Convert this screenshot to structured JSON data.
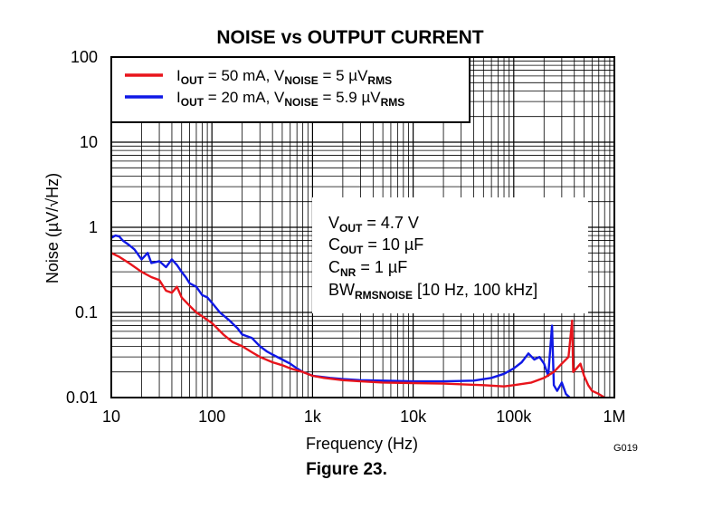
{
  "chart_data": {
    "type": "line",
    "title": "NOISE vs OUTPUT CURRENT",
    "xlabel": "Frequency (Hz)",
    "ylabel": "Noise (µV/√Hz)",
    "x_scale": "log",
    "y_scale": "log",
    "xlim": [
      10,
      1000000
    ],
    "ylim": [
      0.01,
      100
    ],
    "x_ticks": [
      {
        "value": 10,
        "label": "10"
      },
      {
        "value": 100,
        "label": "100"
      },
      {
        "value": 1000,
        "label": "1k"
      },
      {
        "value": 10000,
        "label": "10k"
      },
      {
        "value": 100000,
        "label": "100k"
      },
      {
        "value": 1000000,
        "label": "1M"
      }
    ],
    "y_ticks": [
      {
        "value": 0.01,
        "label": "0.01"
      },
      {
        "value": 0.1,
        "label": "0.1"
      },
      {
        "value": 1,
        "label": "1"
      },
      {
        "value": 10,
        "label": "10"
      },
      {
        "value": 100,
        "label": "100"
      }
    ],
    "grid": true,
    "legend_position": "top-left",
    "series": [
      {
        "name": "IOUT = 50 mA, VNOISE = 5 µVRMS",
        "legend_html": "I<tspan font-size='12' font-weight='bold' dy='4'>OUT</tspan><tspan dy='-4'> = 50 mA, V</tspan><tspan font-size='12' font-weight='bold' dy='4'>NOISE</tspan><tspan dy='-4'> = 5 µV</tspan><tspan font-size='12' font-weight='bold' dy='4'>RMS</tspan>",
        "color": "#e8141b",
        "points": [
          [
            10,
            0.5
          ],
          [
            12,
            0.45
          ],
          [
            15,
            0.38
          ],
          [
            20,
            0.3
          ],
          [
            25,
            0.26
          ],
          [
            30,
            0.24
          ],
          [
            35,
            0.18
          ],
          [
            40,
            0.17
          ],
          [
            45,
            0.2
          ],
          [
            50,
            0.15
          ],
          [
            60,
            0.12
          ],
          [
            70,
            0.1
          ],
          [
            80,
            0.09
          ],
          [
            100,
            0.075
          ],
          [
            130,
            0.055
          ],
          [
            160,
            0.045
          ],
          [
            200,
            0.04
          ],
          [
            250,
            0.034
          ],
          [
            300,
            0.03
          ],
          [
            400,
            0.026
          ],
          [
            500,
            0.024
          ],
          [
            600,
            0.022
          ],
          [
            800,
            0.02
          ],
          [
            1000,
            0.018
          ],
          [
            1300,
            0.017
          ],
          [
            2000,
            0.016
          ],
          [
            3000,
            0.0155
          ],
          [
            5000,
            0.015
          ],
          [
            10000,
            0.0148
          ],
          [
            20000,
            0.0146
          ],
          [
            50000,
            0.014
          ],
          [
            80000,
            0.0135
          ],
          [
            100000,
            0.014
          ],
          [
            150000,
            0.015
          ],
          [
            200000,
            0.017
          ],
          [
            250000,
            0.02
          ],
          [
            300000,
            0.025
          ],
          [
            350000,
            0.03
          ],
          [
            380000,
            0.08
          ],
          [
            390000,
            0.02
          ],
          [
            420000,
            0.022
          ],
          [
            460000,
            0.025
          ],
          [
            500000,
            0.018
          ],
          [
            550000,
            0.014
          ],
          [
            600000,
            0.012
          ],
          [
            700000,
            0.011
          ],
          [
            800000,
            0.01
          ]
        ]
      },
      {
        "name": "IOUT = 20 mA, VNOISE = 5.9 µVRMS",
        "legend_html": "I<tspan font-size='12' font-weight='bold' dy='4'>OUT</tspan><tspan dy='-4'> = 20 mA, V</tspan><tspan font-size='12' font-weight='bold' dy='4'>NOISE</tspan><tspan dy='-4'> = 5.9 µV</tspan><tspan font-size='12' font-weight='bold' dy='4'>RMS</tspan>",
        "color": "#0f18e6",
        "points": [
          [
            10,
            0.75
          ],
          [
            11,
            0.8
          ],
          [
            12,
            0.78
          ],
          [
            13,
            0.7
          ],
          [
            15,
            0.62
          ],
          [
            17,
            0.55
          ],
          [
            20,
            0.42
          ],
          [
            23,
            0.5
          ],
          [
            25,
            0.38
          ],
          [
            30,
            0.4
          ],
          [
            35,
            0.34
          ],
          [
            40,
            0.42
          ],
          [
            45,
            0.36
          ],
          [
            50,
            0.3
          ],
          [
            55,
            0.26
          ],
          [
            60,
            0.22
          ],
          [
            70,
            0.2
          ],
          [
            80,
            0.16
          ],
          [
            90,
            0.15
          ],
          [
            100,
            0.13
          ],
          [
            120,
            0.1
          ],
          [
            150,
            0.08
          ],
          [
            180,
            0.065
          ],
          [
            200,
            0.055
          ],
          [
            250,
            0.05
          ],
          [
            300,
            0.04
          ],
          [
            350,
            0.035
          ],
          [
            400,
            0.032
          ],
          [
            500,
            0.028
          ],
          [
            600,
            0.025
          ],
          [
            700,
            0.022
          ],
          [
            800,
            0.02
          ],
          [
            900,
            0.019
          ],
          [
            1000,
            0.018
          ],
          [
            1500,
            0.017
          ],
          [
            2000,
            0.0165
          ],
          [
            3000,
            0.016
          ],
          [
            5000,
            0.0158
          ],
          [
            10000,
            0.0155
          ],
          [
            20000,
            0.0155
          ],
          [
            40000,
            0.0158
          ],
          [
            60000,
            0.017
          ],
          [
            80000,
            0.019
          ],
          [
            100000,
            0.022
          ],
          [
            120000,
            0.026
          ],
          [
            140000,
            0.033
          ],
          [
            160000,
            0.028
          ],
          [
            180000,
            0.03
          ],
          [
            200000,
            0.025
          ],
          [
            220000,
            0.018
          ],
          [
            240000,
            0.07
          ],
          [
            250000,
            0.014
          ],
          [
            270000,
            0.012
          ],
          [
            300000,
            0.015
          ],
          [
            330000,
            0.011
          ],
          [
            360000,
            0.01
          ]
        ]
      }
    ],
    "annotations": {
      "vout": "VOUT = 4.7 V",
      "cout": "COUT = 10 µF",
      "cnr": "CNR = 1 µF",
      "bw": "BWRMSNOISE [10 Hz, 100 kHz]",
      "vout_html": "V<tspan font-size='12' font-weight='bold' dy='4'>OUT</tspan><tspan dy='-4'> = 4.7 V</tspan>",
      "cout_html": "C<tspan font-size='12' font-weight='bold' dy='4'>OUT</tspan><tspan dy='-4'> = 10 µF</tspan>",
      "cnr_html": "C<tspan font-size='12' font-weight='bold' dy='4'>NR</tspan><tspan dy='-4'> = 1 µF</tspan>",
      "bw_html": "BW<tspan font-size='12' font-weight='bold' dy='4'>RMSNOISE</tspan><tspan dy='-4'> [10 Hz, 100 kHz]</tspan>"
    }
  },
  "figure_caption": "Figure 23.",
  "figure_code": "G019"
}
